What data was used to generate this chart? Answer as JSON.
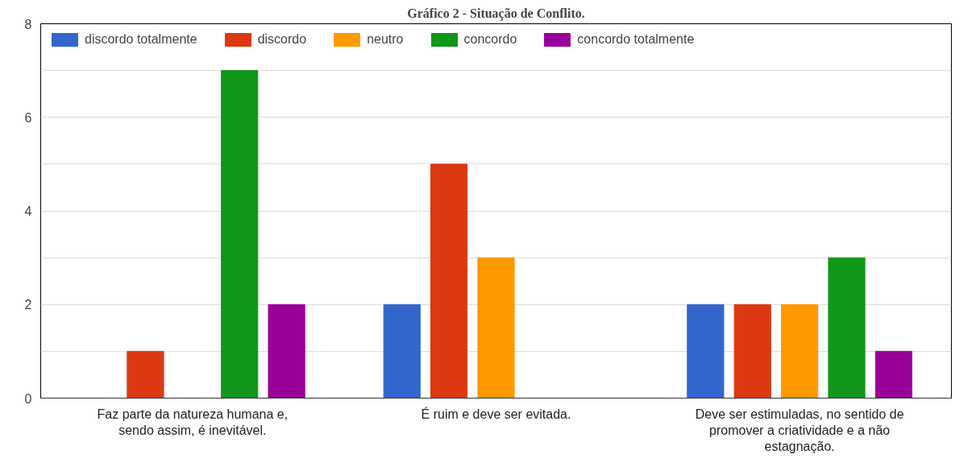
{
  "chart_data": {
    "type": "bar",
    "title": "Gráfico 2 - Situação de Conflito.",
    "categories": [
      "Faz parte da natureza humana e, sendo assim, é inevitável.",
      "É ruim e deve ser evitada.",
      "Deve ser estimuladas, no sentido de promover a criatividade e a não estagnação."
    ],
    "series": [
      {
        "name": "discordo totalmente",
        "color": "#3366cc",
        "values": [
          0,
          2,
          2
        ]
      },
      {
        "name": "discordo",
        "color": "#dc3912",
        "values": [
          1,
          5,
          2
        ]
      },
      {
        "name": "neutro",
        "color": "#ff9900",
        "values": [
          0,
          3,
          2
        ]
      },
      {
        "name": "concordo",
        "color": "#109618",
        "values": [
          7,
          0,
          3
        ]
      },
      {
        "name": "concordo totalmente",
        "color": "#990099",
        "values": [
          2,
          0,
          1
        ]
      }
    ],
    "ylim": [
      0,
      8
    ],
    "yticks": [
      0,
      {
        "value": 1,
        "label": null
      },
      2,
      {
        "value": 3,
        "label": null
      },
      4,
      {
        "value": 5,
        "label": null
      },
      6,
      {
        "value": 7,
        "label": null
      },
      8
    ],
    "grid": "y",
    "legend": "top left"
  }
}
